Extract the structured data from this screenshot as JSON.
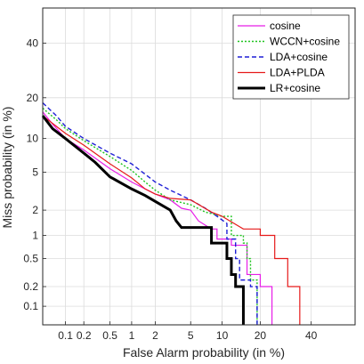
{
  "chart_data": {
    "type": "line",
    "title": "",
    "xlabel": "False Alarm probability (in %)",
    "ylabel": "Miss probability (in %)",
    "xscale": "probit",
    "yscale": "probit",
    "xlim": [
      0.04,
      60
    ],
    "ylim": [
      0.05,
      55
    ],
    "x_ticks": [
      0.1,
      0.2,
      0.5,
      1,
      2,
      5,
      10,
      20,
      40
    ],
    "x_tick_labels": [
      "0.1",
      "0.2",
      "0.5",
      "1",
      "2",
      "5",
      "10",
      "20",
      "40"
    ],
    "y_ticks": [
      0.1,
      0.2,
      0.5,
      1,
      2,
      5,
      10,
      20,
      40
    ],
    "y_tick_labels": [
      "0.1",
      "0.2",
      "0.5",
      "1",
      "2",
      "5",
      "10",
      "20",
      "40"
    ],
    "grid": true,
    "legend_position": "top-right",
    "series": [
      {
        "name": "cosine",
        "color": "#e81ee8",
        "style": "solid",
        "width": 1.2,
        "points": [
          [
            0.04,
            16
          ],
          [
            0.06,
            13
          ],
          [
            0.1,
            10
          ],
          [
            0.2,
            8
          ],
          [
            0.5,
            5.4
          ],
          [
            1,
            4
          ],
          [
            1.5,
            3.4
          ],
          [
            2,
            3.0
          ],
          [
            3,
            2.6
          ],
          [
            4,
            2.1
          ],
          [
            5,
            2.0
          ],
          [
            6,
            1.5
          ],
          [
            8,
            1.2
          ],
          [
            9,
            1.2
          ],
          [
            9,
            0.9
          ],
          [
            12,
            0.9
          ],
          [
            12,
            0.75
          ],
          [
            16,
            0.75
          ],
          [
            16,
            0.3
          ],
          [
            20,
            0.3
          ],
          [
            20,
            0.2
          ],
          [
            24,
            0.2
          ],
          [
            24,
            0.05
          ]
        ]
      },
      {
        "name": "WCCN+cosine",
        "color": "#1ec41e",
        "style": "dotted",
        "width": 1.4,
        "points": [
          [
            0.04,
            17
          ],
          [
            0.07,
            14
          ],
          [
            0.1,
            12
          ],
          [
            0.2,
            9.6
          ],
          [
            0.5,
            7.0
          ],
          [
            1,
            5.2
          ],
          [
            1.5,
            4.0
          ],
          [
            2,
            3.3
          ],
          [
            3,
            2.6
          ],
          [
            5,
            2.3
          ],
          [
            7,
            1.9
          ],
          [
            10,
            1.7
          ],
          [
            12,
            1.7
          ],
          [
            12,
            1.0
          ],
          [
            15,
            1.0
          ],
          [
            15,
            0.8
          ],
          [
            16,
            0.8
          ],
          [
            16,
            0.5
          ],
          [
            17,
            0.5
          ],
          [
            17,
            0.25
          ],
          [
            19,
            0.25
          ],
          [
            19,
            0.05
          ]
        ]
      },
      {
        "name": "LDA+cosine",
        "color": "#1f1fd6",
        "style": "dashed",
        "width": 1.4,
        "points": [
          [
            0.04,
            18.5
          ],
          [
            0.07,
            15
          ],
          [
            0.1,
            12.5
          ],
          [
            0.2,
            10
          ],
          [
            0.5,
            7.5
          ],
          [
            1,
            6.0
          ],
          [
            2,
            4.0
          ],
          [
            3,
            3.3
          ],
          [
            5,
            2.6
          ],
          [
            7,
            2.1
          ],
          [
            9,
            1.7
          ],
          [
            11,
            1.4
          ],
          [
            11,
            0.9
          ],
          [
            13,
            0.9
          ],
          [
            13,
            0.5
          ],
          [
            14,
            0.5
          ],
          [
            14,
            0.25
          ],
          [
            17,
            0.25
          ],
          [
            17,
            0.2
          ],
          [
            19,
            0.2
          ],
          [
            19,
            0.05
          ]
        ]
      },
      {
        "name": "LDA+PLDA",
        "color": "#e61a1a",
        "style": "solid",
        "width": 1.2,
        "points": [
          [
            0.04,
            15
          ],
          [
            0.07,
            12.5
          ],
          [
            0.1,
            11
          ],
          [
            0.2,
            8.8
          ],
          [
            0.5,
            6.0
          ],
          [
            1,
            4.4
          ],
          [
            1.5,
            3.4
          ],
          [
            2,
            3.0
          ],
          [
            3,
            2.7
          ],
          [
            5,
            2.6
          ],
          [
            8,
            1.9
          ],
          [
            10,
            1.7
          ],
          [
            15,
            1.2
          ],
          [
            20,
            1.2
          ],
          [
            20,
            1.0
          ],
          [
            25,
            1.0
          ],
          [
            25,
            0.5
          ],
          [
            30,
            0.5
          ],
          [
            30,
            0.2
          ],
          [
            35,
            0.2
          ],
          [
            35,
            0.05
          ]
        ]
      },
      {
        "name": "LR+cosine",
        "color": "#000000",
        "style": "solid",
        "width": 3,
        "points": [
          [
            0.04,
            15
          ],
          [
            0.06,
            12
          ],
          [
            0.1,
            10
          ],
          [
            0.2,
            7.5
          ],
          [
            0.3,
            6.2
          ],
          [
            0.5,
            4.5
          ],
          [
            1,
            3.4
          ],
          [
            1.5,
            2.9
          ],
          [
            2,
            2.5
          ],
          [
            3,
            2.0
          ],
          [
            3.5,
            1.5
          ],
          [
            4,
            1.25
          ],
          [
            5,
            1.25
          ],
          [
            8,
            1.25
          ],
          [
            8,
            0.8
          ],
          [
            11,
            0.8
          ],
          [
            11,
            0.5
          ],
          [
            12,
            0.5
          ],
          [
            12,
            0.3
          ],
          [
            13,
            0.3
          ],
          [
            13,
            0.2
          ],
          [
            15,
            0.2
          ],
          [
            15,
            0.05
          ]
        ]
      }
    ]
  }
}
